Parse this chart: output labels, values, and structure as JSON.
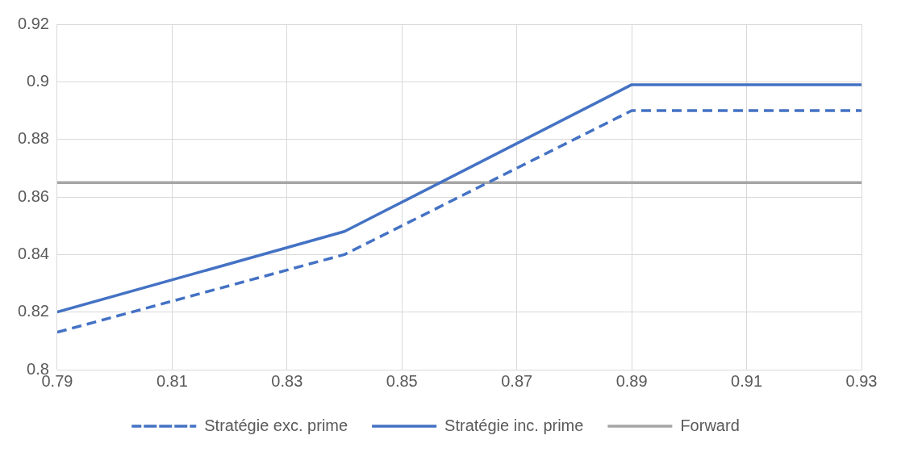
{
  "chart_data": {
    "type": "line",
    "xlim": [
      0.79,
      0.93
    ],
    "xticks": [
      0.79,
      0.81,
      0.83,
      0.85,
      0.87,
      0.89,
      0.91,
      0.93
    ],
    "ylim": [
      0.8,
      0.92
    ],
    "yticks": [
      0.8,
      0.82,
      0.84,
      0.86,
      0.88,
      0.9,
      0.92
    ],
    "grid": true,
    "legend": "bottom",
    "marker": "none",
    "series": [
      {
        "name": "Stratégie exc. prime",
        "color": "#4472c4",
        "line_style": "dashed",
        "x": [
          0.79,
          0.84,
          0.89,
          0.93
        ],
        "values": [
          0.813,
          0.84,
          0.89,
          0.89
        ]
      },
      {
        "name": "Stratégie inc. prime",
        "color": "#4472c4",
        "line_style": "solid",
        "x": [
          0.79,
          0.84,
          0.89,
          0.93
        ],
        "values": [
          0.82,
          0.848,
          0.899,
          0.899
        ]
      },
      {
        "name": "Forward",
        "color": "#a5a5a5",
        "line_style": "solid",
        "x": [
          0.79,
          0.93
        ],
        "values": [
          0.865,
          0.865
        ]
      }
    ]
  }
}
